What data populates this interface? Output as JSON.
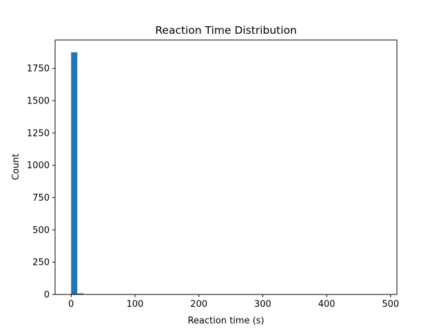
{
  "chart_data": {
    "type": "bar",
    "title": "Reaction Time Distribution",
    "xlabel": "Reaction time (s)",
    "ylabel": "Count",
    "xlim": [
      -25,
      510
    ],
    "ylim": [
      0,
      1970
    ],
    "x_ticks": [
      0,
      100,
      200,
      300,
      400,
      500
    ],
    "y_ticks": [
      0,
      250,
      500,
      750,
      1000,
      1250,
      1500,
      1750
    ],
    "bin_width": 9.7,
    "bins": [
      {
        "x0": 0.0,
        "value": 1875
      },
      {
        "x0": 9.7,
        "value": 8
      },
      {
        "x0": 19.4,
        "value": 1
      },
      {
        "x0": 29.1,
        "value": 1
      },
      {
        "x0": 38.8,
        "value": 0
      }
    ],
    "grid": false,
    "bar_color": "#1f77b4"
  }
}
